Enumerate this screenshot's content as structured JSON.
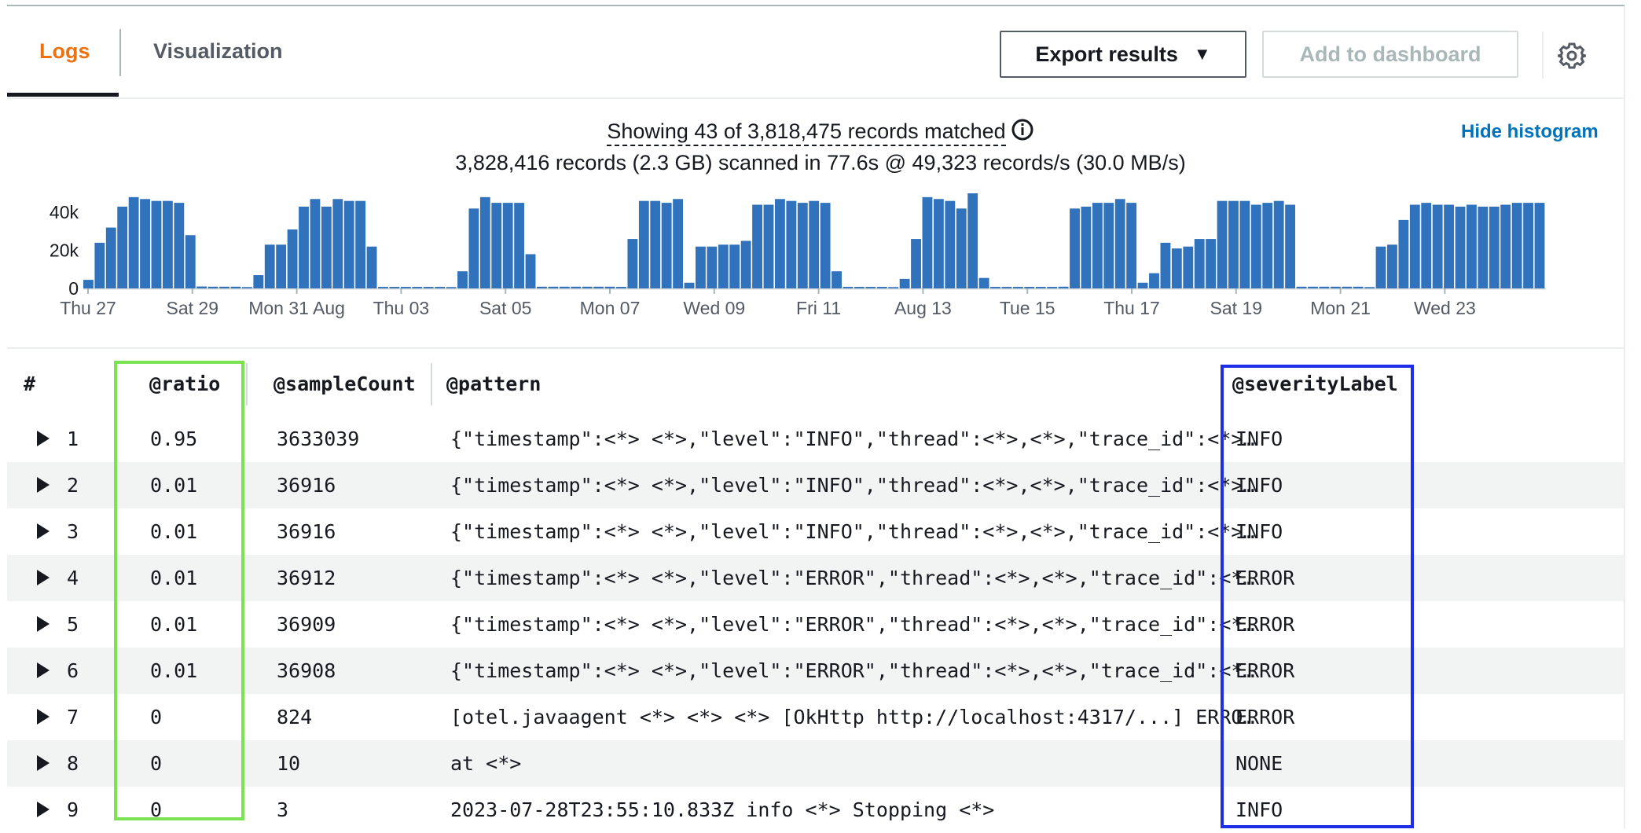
{
  "tabs": [
    {
      "label": "Logs",
      "active": true
    },
    {
      "label": "Visualization",
      "active": false
    }
  ],
  "toolbar": {
    "export_label": "Export results",
    "add_dashboard_label": "Add to dashboard",
    "settings_icon": "gear-icon"
  },
  "summary": {
    "matched": "Showing 43 of 3,818,475 records matched",
    "scanned": "3,828,416 records (2.3 GB) scanned in 77.6s @ 49,323 records/s (30.0 MB/s)",
    "hide_histogram": "Hide histogram"
  },
  "chart_data": {
    "type": "bar",
    "y_ticks": [
      "40k",
      "20k",
      "0"
    ],
    "ylim": [
      0,
      50000
    ],
    "x_ticks": [
      "Thu 27",
      "Sat 29",
      "Mon 31 Aug",
      "Thu 03",
      "Sat 05",
      "Mon 07",
      "Wed 09",
      "Fri 11",
      "Aug 13",
      "Tue 15",
      "Thu 17",
      "Sat 19",
      "Mon 21",
      "Wed 23"
    ],
    "values": [
      4500,
      24000,
      32000,
      43000,
      48000,
      47000,
      46000,
      46000,
      45000,
      28000,
      1000,
      900,
      900,
      900,
      700,
      7000,
      23000,
      23000,
      31000,
      43000,
      47000,
      43000,
      47000,
      46000,
      46000,
      22000,
      800,
      800,
      800,
      800,
      800,
      800,
      700,
      9000,
      42000,
      48000,
      45000,
      45000,
      45000,
      18000,
      900,
      900,
      900,
      900,
      900,
      900,
      900,
      800,
      26000,
      46000,
      46000,
      45000,
      47000,
      3000,
      22000,
      22000,
      23000,
      23000,
      25000,
      44000,
      44000,
      47000,
      46000,
      45000,
      46000,
      45000,
      9000,
      800,
      800,
      800,
      800,
      700,
      5000,
      26000,
      48000,
      47000,
      46000,
      42000,
      50000,
      5500,
      800,
      800,
      800,
      800,
      800,
      800,
      900,
      42000,
      43000,
      45000,
      45000,
      47000,
      45000,
      3000,
      8000,
      24000,
      21000,
      22000,
      26000,
      26000,
      46000,
      46000,
      46000,
      44000,
      45000,
      46000,
      44000,
      900,
      900,
      900,
      900,
      900,
      900,
      700,
      22000,
      23000,
      36000,
      44000,
      45000,
      44000,
      44000,
      43000,
      44000,
      43000,
      43000,
      44000,
      45000,
      45000,
      45000
    ],
    "color": "#3072bb"
  },
  "table": {
    "headers": [
      "#",
      "@ratio",
      "@sampleCount",
      "@pattern",
      "@severityLabel"
    ],
    "rows": [
      {
        "num": "1",
        "ratio": "0.95",
        "count": "3633039",
        "pattern": "{\"timestamp\":<*> <*>,\"level\":\"INFO\",\"thread\":<*>,<*>,\"trace_id\":<*>…",
        "severity": "INFO"
      },
      {
        "num": "2",
        "ratio": "0.01",
        "count": "36916",
        "pattern": "{\"timestamp\":<*> <*>,\"level\":\"INFO\",\"thread\":<*>,<*>,\"trace_id\":<*>…",
        "severity": "INFO"
      },
      {
        "num": "3",
        "ratio": "0.01",
        "count": "36916",
        "pattern": "{\"timestamp\":<*> <*>,\"level\":\"INFO\",\"thread\":<*>,<*>,\"trace_id\":<*>…",
        "severity": "INFO"
      },
      {
        "num": "4",
        "ratio": "0.01",
        "count": "36912",
        "pattern": "{\"timestamp\":<*> <*>,\"level\":\"ERROR\",\"thread\":<*>,<*>,\"trace_id\":<*…",
        "severity": "ERROR"
      },
      {
        "num": "5",
        "ratio": "0.01",
        "count": "36909",
        "pattern": "{\"timestamp\":<*> <*>,\"level\":\"ERROR\",\"thread\":<*>,<*>,\"trace_id\":<*…",
        "severity": "ERROR"
      },
      {
        "num": "6",
        "ratio": "0.01",
        "count": "36908",
        "pattern": "{\"timestamp\":<*> <*>,\"level\":\"ERROR\",\"thread\":<*>,<*>,\"trace_id\":<*…",
        "severity": "ERROR"
      },
      {
        "num": "7",
        "ratio": "0",
        "count": "824",
        "pattern": "[otel.javaagent <*> <*> <*> [OkHttp http://localhost:4317/...] ERRO…",
        "severity": "ERROR"
      },
      {
        "num": "8",
        "ratio": "0",
        "count": "10",
        "pattern": "at <*>",
        "severity": "NONE"
      },
      {
        "num": "9",
        "ratio": "0",
        "count": "3",
        "pattern": "2023-07-28T23:55:10.833Z info <*> Stopping <*>",
        "severity": "INFO"
      }
    ]
  }
}
